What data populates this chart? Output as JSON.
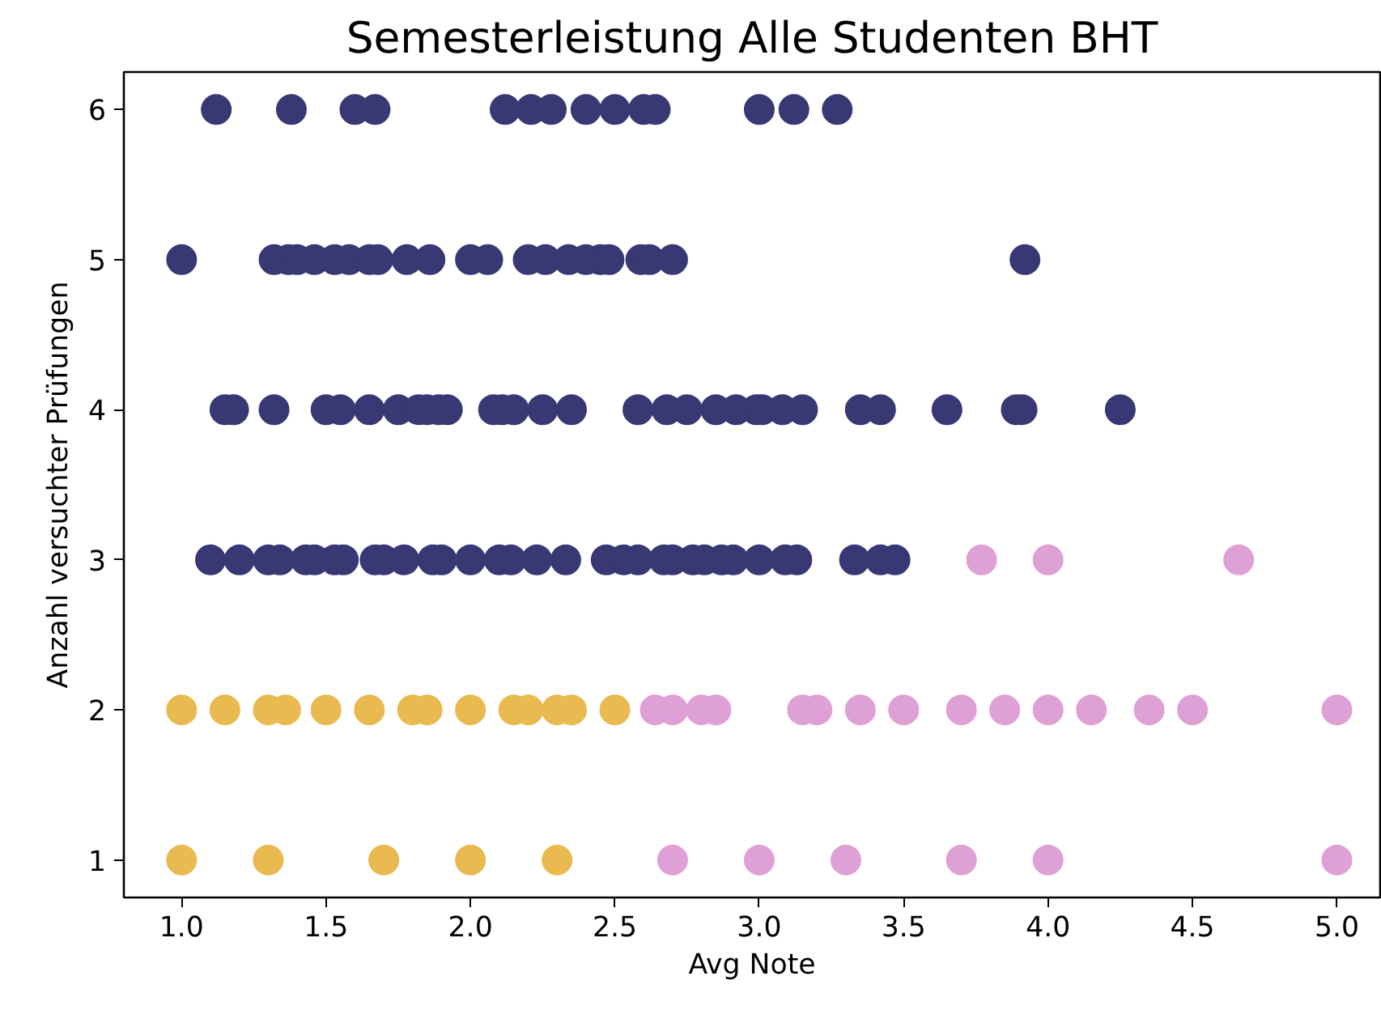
{
  "chart_data": {
    "type": "scatter",
    "title": "Semesterleistung Alle Studenten BHT",
    "xlabel": "Avg Note",
    "ylabel": "Anzahl versuchter Prüfungen",
    "xlim": [
      0.8,
      5.15
    ],
    "ylim": [
      0.75,
      6.25
    ],
    "xticks": [
      {
        "value": 1.0,
        "label": "1.0"
      },
      {
        "value": 1.5,
        "label": "1.5"
      },
      {
        "value": 2.0,
        "label": "2.0"
      },
      {
        "value": 2.5,
        "label": "2.5"
      },
      {
        "value": 3.0,
        "label": "3.0"
      },
      {
        "value": 3.5,
        "label": "3.5"
      },
      {
        "value": 4.0,
        "label": "4.0"
      },
      {
        "value": 4.5,
        "label": "4.5"
      },
      {
        "value": 5.0,
        "label": "5.0"
      }
    ],
    "yticks": [
      1,
      2,
      3,
      4,
      5,
      6
    ],
    "grid": false,
    "marker": "circle",
    "series": [
      {
        "color": "#383874",
        "x": [
          1.12,
          1.38,
          1.6,
          1.67,
          2.12,
          2.21,
          2.28,
          2.4,
          2.5,
          2.6,
          2.64,
          3.0,
          3.12,
          3.27,
          1.0,
          1.32,
          1.37,
          1.4,
          1.46,
          1.53,
          1.58,
          1.65,
          1.68,
          1.78,
          1.86,
          2.0,
          2.06,
          2.2,
          2.26,
          2.34,
          2.4,
          2.45,
          2.48,
          2.59,
          2.62,
          2.7,
          3.92,
          1.15,
          1.18,
          1.32,
          1.5,
          1.55,
          1.65,
          1.75,
          1.82,
          1.85,
          1.89,
          1.92,
          2.08,
          2.11,
          2.15,
          2.25,
          2.35,
          2.58,
          2.68,
          2.75,
          2.85,
          2.92,
          2.99,
          3.01,
          3.08,
          3.15,
          3.35,
          3.42,
          3.65,
          3.89,
          3.91,
          4.25,
          1.1,
          1.2,
          1.3,
          1.34,
          1.43,
          1.46,
          1.53,
          1.56,
          1.67,
          1.7,
          1.77,
          1.87,
          1.9,
          2.0,
          2.1,
          2.14,
          2.23,
          2.33,
          2.47,
          2.53,
          2.58,
          2.67,
          2.7,
          2.77,
          2.81,
          2.87,
          2.91,
          3.0,
          3.09,
          3.13,
          3.33,
          3.42,
          3.47
        ],
        "values": [
          6,
          6,
          6,
          6,
          6,
          6,
          6,
          6,
          6,
          6,
          6,
          6,
          6,
          6,
          5,
          5,
          5,
          5,
          5,
          5,
          5,
          5,
          5,
          5,
          5,
          5,
          5,
          5,
          5,
          5,
          5,
          5,
          5,
          5,
          5,
          5,
          5,
          4,
          4,
          4,
          4,
          4,
          4,
          4,
          4,
          4,
          4,
          4,
          4,
          4,
          4,
          4,
          4,
          4,
          4,
          4,
          4,
          4,
          4,
          4,
          4,
          4,
          4,
          4,
          4,
          4,
          4,
          4,
          3,
          3,
          3,
          3,
          3,
          3,
          3,
          3,
          3,
          3,
          3,
          3,
          3,
          3,
          3,
          3,
          3,
          3,
          3,
          3,
          3,
          3,
          3,
          3,
          3,
          3,
          3,
          3,
          3,
          3,
          3,
          3,
          3
        ]
      },
      {
        "color": "#e8ba50",
        "x": [
          1.0,
          1.15,
          1.3,
          1.36,
          1.5,
          1.65,
          1.8,
          1.85,
          2.0,
          2.15,
          2.2,
          2.3,
          2.35,
          2.5,
          1.0,
          1.3,
          1.7,
          2.0,
          2.3
        ],
        "values": [
          2,
          2,
          2,
          2,
          2,
          2,
          2,
          2,
          2,
          2,
          2,
          2,
          2,
          2,
          1,
          1,
          1,
          1,
          1
        ]
      },
      {
        "color": "#dfa0d6",
        "x": [
          3.77,
          4.0,
          4.66,
          2.64,
          2.7,
          2.8,
          2.85,
          3.15,
          3.2,
          3.35,
          3.5,
          3.7,
          3.85,
          4.0,
          4.15,
          4.35,
          4.5,
          5.0,
          2.7,
          3.0,
          3.3,
          3.7,
          4.0,
          5.0
        ],
        "values": [
          3,
          3,
          3,
          2,
          2,
          2,
          2,
          2,
          2,
          2,
          2,
          2,
          2,
          2,
          2,
          2,
          2,
          2,
          1,
          1,
          1,
          1,
          1,
          1
        ]
      }
    ]
  }
}
